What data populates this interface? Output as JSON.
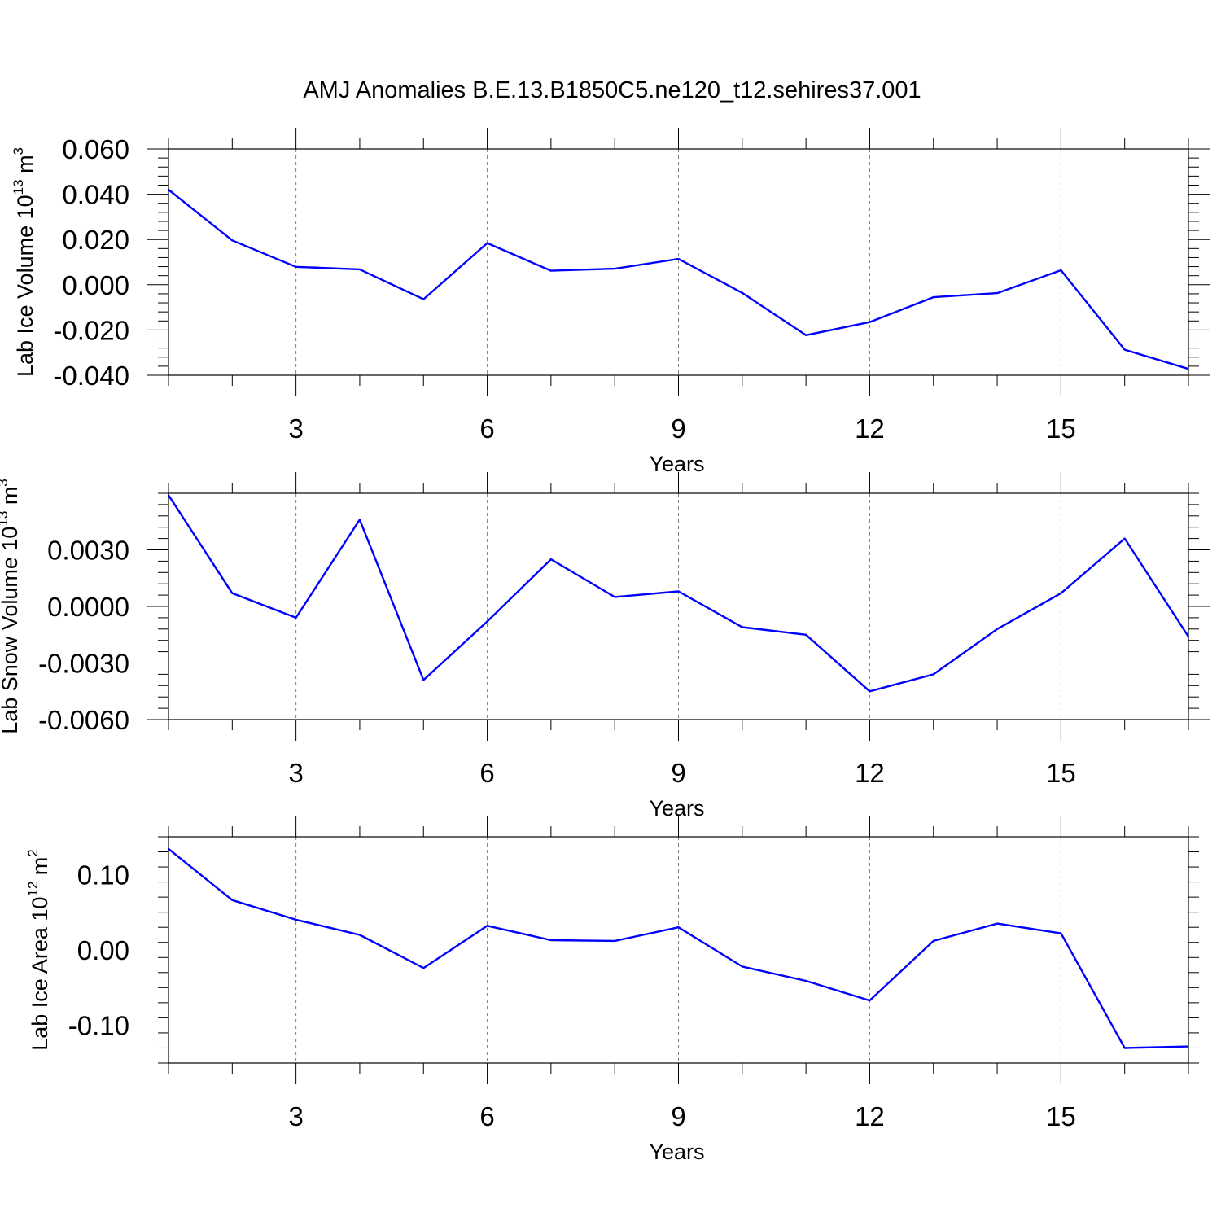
{
  "title": "AMJ Anomalies B.E.13.B1850C5.ne120_t12.sehires37.001",
  "colors": {
    "line": "#0000ff",
    "axis": "#000000",
    "grid": "#7f7f7f"
  },
  "chart_data": [
    {
      "type": "line",
      "title": "AMJ Anomalies B.E.13.B1850C5.ne120_t12.sehires37.001",
      "xlabel": "Years",
      "ylabel": "Lab Ice Volume 10",
      "ylabel_exp": "13",
      "ylabel_unit": " m",
      "ylabel_unit_exp": "3",
      "xlim": [
        1,
        17
      ],
      "ylim": [
        -0.04,
        0.06
      ],
      "xticks": [
        3,
        6,
        9,
        12,
        15
      ],
      "xtick_labels": [
        "3",
        "6",
        "9",
        "12",
        "15"
      ],
      "yticks": [
        -0.04,
        -0.02,
        0.0,
        0.02,
        0.04,
        0.06
      ],
      "ytick_labels": [
        "-0.040",
        "-0.020",
        "0.000",
        "0.020",
        "0.040",
        "0.060"
      ],
      "grid": "vertical dashed at x ticks",
      "x": [
        1,
        2,
        3,
        4,
        5,
        6,
        7,
        8,
        9,
        10,
        11,
        12,
        13,
        14,
        15,
        16,
        17
      ],
      "series": [
        {
          "name": "Lab Ice Volume",
          "values": [
            0.042,
            0.0196,
            0.0079,
            0.0068,
            -0.0064,
            0.0184,
            0.0062,
            0.0071,
            0.0114,
            -0.0036,
            -0.0223,
            -0.0165,
            -0.0055,
            -0.0037,
            0.0064,
            -0.0287,
            -0.0372
          ]
        }
      ]
    },
    {
      "type": "line",
      "xlabel": "Years",
      "ylabel": "Lab Snow Volume 10",
      "ylabel_exp": "13",
      "ylabel_unit": " m",
      "ylabel_unit_exp": "3",
      "xlim": [
        1,
        17
      ],
      "ylim": [
        -0.006,
        0.006
      ],
      "xticks": [
        3,
        6,
        9,
        12,
        15
      ],
      "xtick_labels": [
        "3",
        "6",
        "9",
        "12",
        "15"
      ],
      "yticks": [
        -0.006,
        -0.003,
        0.0,
        0.003
      ],
      "ytick_labels": [
        "-0.0060",
        "-0.0030",
        "0.0000",
        "0.0030"
      ],
      "grid": "vertical dashed at x ticks",
      "x": [
        1,
        2,
        3,
        4,
        5,
        6,
        7,
        8,
        9,
        10,
        11,
        12,
        13,
        14,
        15,
        16,
        17
      ],
      "series": [
        {
          "name": "Lab Snow Volume",
          "values": [
            0.0059,
            0.0007,
            -0.0006,
            0.0046,
            -0.0039,
            -0.0008,
            0.0025,
            0.0005,
            0.0008,
            -0.0011,
            -0.0015,
            -0.0045,
            -0.0036,
            -0.0012,
            0.0007,
            0.0036,
            -0.0016
          ]
        }
      ]
    },
    {
      "type": "line",
      "xlabel": "Years",
      "ylabel": "Lab Ice Area 10",
      "ylabel_exp": "12",
      "ylabel_unit": " m",
      "ylabel_unit_exp": "2",
      "xlim": [
        1,
        17
      ],
      "ylim": [
        -0.15,
        0.15
      ],
      "xticks": [
        3,
        6,
        9,
        12,
        15
      ],
      "xtick_labels": [
        "3",
        "6",
        "9",
        "12",
        "15"
      ],
      "yticks": [
        -0.1,
        0.0,
        0.1
      ],
      "ytick_labels": [
        "-0.10",
        "0.00",
        "0.10"
      ],
      "grid": "vertical dashed at x ticks",
      "x": [
        1,
        2,
        3,
        4,
        5,
        6,
        7,
        8,
        9,
        10,
        11,
        12,
        13,
        14,
        15,
        16,
        17
      ],
      "series": [
        {
          "name": "Lab Ice Area",
          "values": [
            0.134,
            0.066,
            0.04,
            0.02,
            -0.024,
            0.032,
            0.013,
            0.012,
            0.03,
            -0.022,
            -0.041,
            -0.067,
            0.012,
            0.035,
            0.022,
            -0.13,
            -0.128
          ]
        }
      ]
    }
  ]
}
